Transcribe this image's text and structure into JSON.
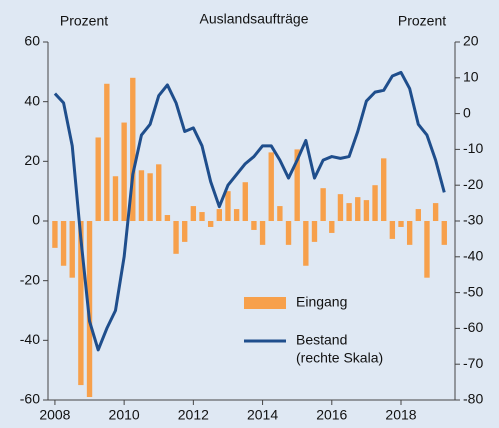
{
  "chart_data": {
    "type": "bar-line",
    "title": "Auslandsaufträge",
    "y_label": "Prozent",
    "y2_label": "Prozent",
    "xlim": [
      2007.8,
      2019.56
    ],
    "xticks": [
      2008,
      2010,
      2012,
      2014,
      2016,
      2018
    ],
    "ylim": [
      -60,
      60
    ],
    "yticks": [
      -60,
      -40,
      -20,
      0,
      20,
      40,
      60
    ],
    "y2lim": [
      -80,
      20
    ],
    "y2ticks": [
      -80,
      -70,
      -60,
      -50,
      -40,
      -30,
      -20,
      -10,
      0,
      10,
      20
    ],
    "x": [
      2008,
      2008.25,
      2008.5,
      2008.75,
      2009,
      2009.25,
      2009.5,
      2009.75,
      2010,
      2010.25,
      2010.5,
      2010.75,
      2011,
      2011.25,
      2011.5,
      2011.75,
      2012,
      2012.25,
      2012.5,
      2012.75,
      2013,
      2013.25,
      2013.5,
      2013.75,
      2014,
      2014.25,
      2014.5,
      2014.75,
      2015,
      2015.25,
      2015.5,
      2015.75,
      2016,
      2016.25,
      2016.5,
      2016.75,
      2017,
      2017.25,
      2017.5,
      2017.75,
      2018,
      2018.25,
      2018.5,
      2018.75,
      2019,
      2019.25
    ],
    "legend_note": "(rechte Skala)",
    "series": [
      {
        "name": "Eingang",
        "type": "bar",
        "color": "#f7a04b",
        "values": [
          -9,
          -15,
          -19,
          -55,
          -59,
          28,
          46,
          15,
          33,
          48,
          17,
          16,
          19,
          2,
          -11,
          -7,
          5,
          3,
          -2,
          4,
          10,
          4,
          13,
          -3,
          -8,
          23,
          5,
          -8,
          24,
          -15,
          -7,
          11,
          -4,
          9,
          6,
          8,
          7,
          12,
          21,
          -6,
          -2,
          -8,
          4,
          -19,
          6,
          -8
        ]
      },
      {
        "name": "Bestand",
        "type": "line",
        "axis": "y2",
        "color": "#1f4e8c",
        "values": [
          5.6,
          3,
          -9,
          -35,
          -58,
          -66,
          -60,
          -55,
          -40,
          -17,
          -6,
          -3,
          5,
          8,
          3,
          -5,
          -4,
          -9,
          -19,
          -26,
          -20,
          -17,
          -14,
          -12,
          -9,
          -9,
          -13,
          -18,
          -13,
          -7.5,
          -18,
          -13,
          -12,
          -12.5,
          -12,
          -5,
          3.5,
          6,
          6.5,
          10.5,
          11.5,
          7,
          -3,
          -6,
          -13,
          -22
        ]
      }
    ]
  }
}
